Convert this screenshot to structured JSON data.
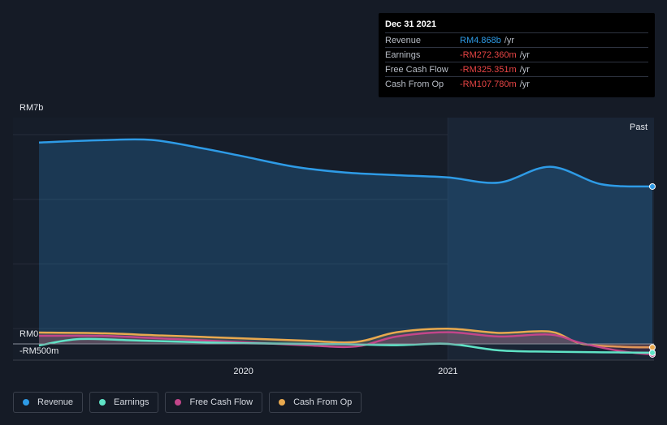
{
  "tooltip": {
    "date": "Dec 31 2021",
    "rows": [
      {
        "label": "Revenue",
        "value": "RM4.868b",
        "unit": "/yr",
        "color": "#2e9be6"
      },
      {
        "label": "Earnings",
        "value": "-RM272.360m",
        "unit": "/yr",
        "color": "#e84545"
      },
      {
        "label": "Free Cash Flow",
        "value": "-RM325.351m",
        "unit": "/yr",
        "color": "#e84545"
      },
      {
        "label": "Cash From Op",
        "value": "-RM107.780m",
        "unit": "/yr",
        "color": "#e84545"
      }
    ]
  },
  "legend": [
    {
      "label": "Revenue",
      "color": "#2e9be6",
      "icon": "revenue-dot-icon"
    },
    {
      "label": "Earnings",
      "color": "#5fe3c6",
      "icon": "earnings-dot-icon"
    },
    {
      "label": "Free Cash Flow",
      "color": "#c2468a",
      "icon": "free-cash-flow-dot-icon"
    },
    {
      "label": "Cash From Op",
      "color": "#e8a94f",
      "icon": "cash-from-op-dot-icon"
    }
  ],
  "chart_data": {
    "type": "line",
    "y_tick_labels": [
      "RM7b",
      "RM0",
      "-RM500m"
    ],
    "x_tick_labels": [
      "2020",
      "2021"
    ],
    "past_label": "Past",
    "ylim": [
      -500,
      7000
    ],
    "grid": true,
    "series": [
      {
        "name": "Revenue",
        "color": "#2e9be6",
        "area": true,
        "points": [
          [
            2019.0,
            6230
          ],
          [
            2019.3,
            6300
          ],
          [
            2019.55,
            6310
          ],
          [
            2019.8,
            6050
          ],
          [
            2020.0,
            5800
          ],
          [
            2020.25,
            5480
          ],
          [
            2020.5,
            5300
          ],
          [
            2020.75,
            5220
          ],
          [
            2021.0,
            5150
          ],
          [
            2021.25,
            4990
          ],
          [
            2021.5,
            5480
          ],
          [
            2021.75,
            4940
          ],
          [
            2022.0,
            4868
          ]
        ]
      },
      {
        "name": "Earnings",
        "color": "#5fe3c6",
        "area": false,
        "points": [
          [
            2019.0,
            -50
          ],
          [
            2019.2,
            150
          ],
          [
            2019.5,
            100
          ],
          [
            2020.0,
            20
          ],
          [
            2020.5,
            -10
          ],
          [
            2020.75,
            -40
          ],
          [
            2021.0,
            0
          ],
          [
            2021.25,
            -200
          ],
          [
            2021.5,
            -240
          ],
          [
            2021.75,
            -260
          ],
          [
            2022.0,
            -272
          ]
        ]
      },
      {
        "name": "Free Cash Flow",
        "color": "#c2468a",
        "area": true,
        "points": [
          [
            2019.0,
            250
          ],
          [
            2019.3,
            250
          ],
          [
            2019.6,
            170
          ],
          [
            2020.0,
            50
          ],
          [
            2020.3,
            -40
          ],
          [
            2020.55,
            -80
          ],
          [
            2020.75,
            230
          ],
          [
            2021.0,
            360
          ],
          [
            2021.25,
            230
          ],
          [
            2021.5,
            290
          ],
          [
            2021.65,
            30
          ],
          [
            2021.85,
            -230
          ],
          [
            2022.0,
            -325
          ]
        ]
      },
      {
        "name": "Cash From Op",
        "color": "#e8a94f",
        "area": true,
        "points": [
          [
            2019.0,
            350
          ],
          [
            2019.3,
            330
          ],
          [
            2019.6,
            260
          ],
          [
            2020.0,
            170
          ],
          [
            2020.3,
            100
          ],
          [
            2020.55,
            60
          ],
          [
            2020.75,
            360
          ],
          [
            2021.0,
            470
          ],
          [
            2021.25,
            340
          ],
          [
            2021.5,
            380
          ],
          [
            2021.65,
            10
          ],
          [
            2021.85,
            -90
          ],
          [
            2022.0,
            -108
          ]
        ]
      }
    ]
  }
}
